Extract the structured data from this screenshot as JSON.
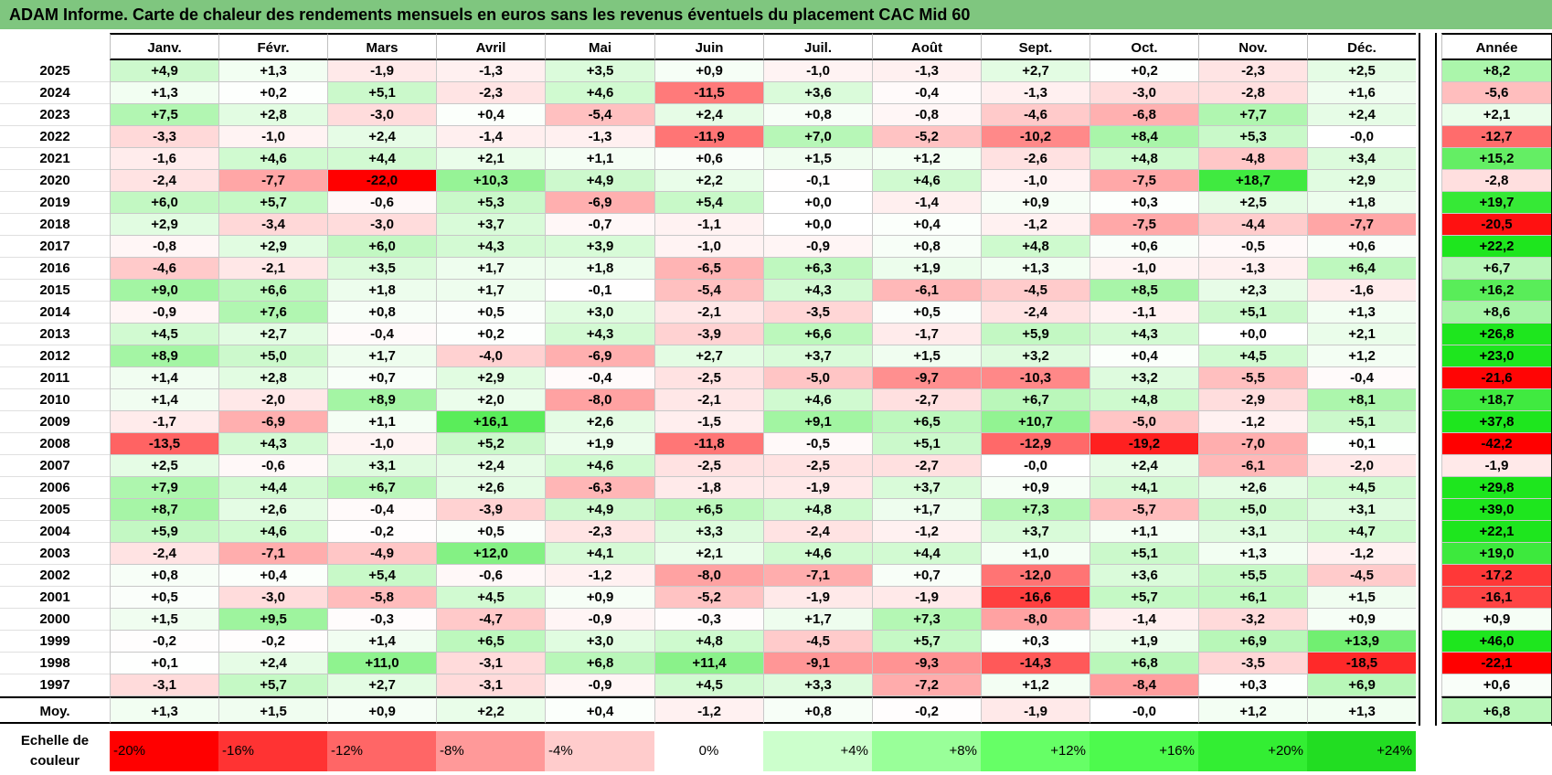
{
  "title": "ADAM Informe. Carte de chaleur des rendements mensuels en euros sans les revenus éventuels du placement CAC Mid 60",
  "chart_data": {
    "type": "heatmap",
    "title": "ADAM Informe. Carte de chaleur des rendements mensuels en euros sans les revenus éventuels du placement CAC Mid 60",
    "columns": [
      "Janv.",
      "Févr.",
      "Mars",
      "Avril",
      "Mai",
      "Juin",
      "Juil.",
      "Août",
      "Sept.",
      "Oct.",
      "Nov.",
      "Déc."
    ],
    "year_column": "Année",
    "rows": [
      {
        "year": "2025",
        "values": [
          "+4,9",
          "+1,3",
          "-1,9",
          "-1,3",
          "+3,5",
          "+0,9",
          "-1,0",
          "-1,3",
          "+2,7",
          "+0,2",
          "-2,3",
          "+2,5"
        ],
        "annual": "+8,2"
      },
      {
        "year": "2024",
        "values": [
          "+1,3",
          "+0,2",
          "+5,1",
          "-2,3",
          "+4,6",
          "-11,5",
          "+3,6",
          "-0,4",
          "-1,3",
          "-3,0",
          "-2,8",
          "+1,6"
        ],
        "annual": "-5,6"
      },
      {
        "year": "2023",
        "values": [
          "+7,5",
          "+2,8",
          "-3,0",
          "+0,4",
          "-5,4",
          "+2,4",
          "+0,8",
          "-0,8",
          "-4,6",
          "-6,8",
          "+7,7",
          "+2,4"
        ],
        "annual": "+2,1"
      },
      {
        "year": "2022",
        "values": [
          "-3,3",
          "-1,0",
          "+2,4",
          "-1,4",
          "-1,3",
          "-11,9",
          "+7,0",
          "-5,2",
          "-10,2",
          "+8,4",
          "+5,3",
          "-0,0"
        ],
        "annual": "-12,7"
      },
      {
        "year": "2021",
        "values": [
          "-1,6",
          "+4,6",
          "+4,4",
          "+2,1",
          "+1,1",
          "+0,6",
          "+1,5",
          "+1,2",
          "-2,6",
          "+4,8",
          "-4,8",
          "+3,4"
        ],
        "annual": "+15,2"
      },
      {
        "year": "2020",
        "values": [
          "-2,4",
          "-7,7",
          "-22,0",
          "+10,3",
          "+4,9",
          "+2,2",
          "-0,1",
          "+4,6",
          "-1,0",
          "-7,5",
          "+18,7",
          "+2,9"
        ],
        "annual": "-2,8"
      },
      {
        "year": "2019",
        "values": [
          "+6,0",
          "+5,7",
          "-0,6",
          "+5,3",
          "-6,9",
          "+5,4",
          "+0,0",
          "-1,4",
          "+0,9",
          "+0,3",
          "+2,5",
          "+1,8"
        ],
        "annual": "+19,7"
      },
      {
        "year": "2018",
        "values": [
          "+2,9",
          "-3,4",
          "-3,0",
          "+3,7",
          "-0,7",
          "-1,1",
          "+0,0",
          "+0,4",
          "-1,2",
          "-7,5",
          "-4,4",
          "-7,7"
        ],
        "annual": "-20,5"
      },
      {
        "year": "2017",
        "values": [
          "-0,8",
          "+2,9",
          "+6,0",
          "+4,3",
          "+3,9",
          "-1,0",
          "-0,9",
          "+0,8",
          "+4,8",
          "+0,6",
          "-0,5",
          "+0,6"
        ],
        "annual": "+22,2"
      },
      {
        "year": "2016",
        "values": [
          "-4,6",
          "-2,1",
          "+3,5",
          "+1,7",
          "+1,8",
          "-6,5",
          "+6,3",
          "+1,9",
          "+1,3",
          "-1,0",
          "-1,3",
          "+6,4"
        ],
        "annual": "+6,7"
      },
      {
        "year": "2015",
        "values": [
          "+9,0",
          "+6,6",
          "+1,8",
          "+1,7",
          "-0,1",
          "-5,4",
          "+4,3",
          "-6,1",
          "-4,5",
          "+8,5",
          "+2,3",
          "-1,6"
        ],
        "annual": "+16,2"
      },
      {
        "year": "2014",
        "values": [
          "-0,9",
          "+7,6",
          "+0,8",
          "+0,5",
          "+3,0",
          "-2,1",
          "-3,5",
          "+0,5",
          "-2,4",
          "-1,1",
          "+5,1",
          "+1,3"
        ],
        "annual": "+8,6"
      },
      {
        "year": "2013",
        "values": [
          "+4,5",
          "+2,7",
          "-0,4",
          "+0,2",
          "+4,3",
          "-3,9",
          "+6,6",
          "-1,7",
          "+5,9",
          "+4,3",
          "+0,0",
          "+2,1"
        ],
        "annual": "+26,8"
      },
      {
        "year": "2012",
        "values": [
          "+8,9",
          "+5,0",
          "+1,7",
          "-4,0",
          "-6,9",
          "+2,7",
          "+3,7",
          "+1,5",
          "+3,2",
          "+0,4",
          "+4,5",
          "+1,2"
        ],
        "annual": "+23,0"
      },
      {
        "year": "2011",
        "values": [
          "+1,4",
          "+2,8",
          "+0,7",
          "+2,9",
          "-0,4",
          "-2,5",
          "-5,0",
          "-9,7",
          "-10,3",
          "+3,2",
          "-5,5",
          "-0,4"
        ],
        "annual": "-21,6"
      },
      {
        "year": "2010",
        "values": [
          "+1,4",
          "-2,0",
          "+8,9",
          "+2,0",
          "-8,0",
          "-2,1",
          "+4,6",
          "-2,7",
          "+6,7",
          "+4,8",
          "-2,9",
          "+8,1"
        ],
        "annual": "+18,7"
      },
      {
        "year": "2009",
        "values": [
          "-1,7",
          "-6,9",
          "+1,1",
          "+16,1",
          "+2,6",
          "-1,5",
          "+9,1",
          "+6,5",
          "+10,7",
          "-5,0",
          "-1,2",
          "+5,1"
        ],
        "annual": "+37,8"
      },
      {
        "year": "2008",
        "values": [
          "-13,5",
          "+4,3",
          "-1,0",
          "+5,2",
          "+1,9",
          "-11,8",
          "-0,5",
          "+5,1",
          "-12,9",
          "-19,2",
          "-7,0",
          "+0,1"
        ],
        "annual": "-42,2"
      },
      {
        "year": "2007",
        "values": [
          "+2,5",
          "-0,6",
          "+3,1",
          "+2,4",
          "+4,6",
          "-2,5",
          "-2,5",
          "-2,7",
          "-0,0",
          "+2,4",
          "-6,1",
          "-2,0"
        ],
        "annual": "-1,9"
      },
      {
        "year": "2006",
        "values": [
          "+7,9",
          "+4,4",
          "+6,7",
          "+2,6",
          "-6,3",
          "-1,8",
          "-1,9",
          "+3,7",
          "+0,9",
          "+4,1",
          "+2,6",
          "+4,5"
        ],
        "annual": "+29,8"
      },
      {
        "year": "2005",
        "values": [
          "+8,7",
          "+2,6",
          "-0,4",
          "-3,9",
          "+4,9",
          "+6,5",
          "+4,8",
          "+1,7",
          "+7,3",
          "-5,7",
          "+5,0",
          "+3,1"
        ],
        "annual": "+39,0"
      },
      {
        "year": "2004",
        "values": [
          "+5,9",
          "+4,6",
          "-0,2",
          "+0,5",
          "-2,3",
          "+3,3",
          "-2,4",
          "-1,2",
          "+3,7",
          "+1,1",
          "+3,1",
          "+4,7"
        ],
        "annual": "+22,1"
      },
      {
        "year": "2003",
        "values": [
          "-2,4",
          "-7,1",
          "-4,9",
          "+12,0",
          "+4,1",
          "+2,1",
          "+4,6",
          "+4,4",
          "+1,0",
          "+5,1",
          "+1,3",
          "-1,2"
        ],
        "annual": "+19,0"
      },
      {
        "year": "2002",
        "values": [
          "+0,8",
          "+0,4",
          "+5,4",
          "-0,6",
          "-1,2",
          "-8,0",
          "-7,1",
          "+0,7",
          "-12,0",
          "+3,6",
          "+5,5",
          "-4,5"
        ],
        "annual": "-17,2"
      },
      {
        "year": "2001",
        "values": [
          "+0,5",
          "-3,0",
          "-5,8",
          "+4,5",
          "+0,9",
          "-5,2",
          "-1,9",
          "-1,9",
          "-16,6",
          "+5,7",
          "+6,1",
          "+1,5"
        ],
        "annual": "-16,1"
      },
      {
        "year": "2000",
        "values": [
          "+1,5",
          "+9,5",
          "-0,3",
          "-4,7",
          "-0,9",
          "-0,3",
          "+1,7",
          "+7,3",
          "-8,0",
          "-1,4",
          "-3,2",
          "+0,9"
        ],
        "annual": "+0,9"
      },
      {
        "year": "1999",
        "values": [
          "-0,2",
          "-0,2",
          "+1,4",
          "+6,5",
          "+3,0",
          "+4,8",
          "-4,5",
          "+5,7",
          "+0,3",
          "+1,9",
          "+6,9",
          "+13,9"
        ],
        "annual": "+46,0"
      },
      {
        "year": "1998",
        "values": [
          "+0,1",
          "+2,4",
          "+11,0",
          "-3,1",
          "+6,8",
          "+11,4",
          "-9,1",
          "-9,3",
          "-14,3",
          "+6,8",
          "-3,5",
          "-18,5"
        ],
        "annual": "-22,1"
      },
      {
        "year": "1997",
        "values": [
          "-3,1",
          "+5,7",
          "+2,7",
          "-3,1",
          "-0,9",
          "+4,5",
          "+3,3",
          "-7,2",
          "+1,2",
          "-8,4",
          "+0,3",
          "+6,9"
        ],
        "annual": "+0,6"
      }
    ],
    "average": {
      "label": "Moy.",
      "values": [
        "+1,3",
        "+1,5",
        "+0,9",
        "+2,2",
        "+0,4",
        "-1,2",
        "+0,8",
        "-0,2",
        "-1,9",
        "-0,0",
        "+1,2",
        "+1,3"
      ],
      "annual": "+6,8"
    },
    "scale": {
      "label": "Echelle de couleur",
      "stops": [
        {
          "label": "-20%",
          "color": "#ff0000"
        },
        {
          "label": "-16%",
          "color": "#ff3333"
        },
        {
          "label": "-12%",
          "color": "#ff6666"
        },
        {
          "label": "-8%",
          "color": "#ff9999"
        },
        {
          "label": "-4%",
          "color": "#ffcccc"
        },
        {
          "label": "0%",
          "color": "#ffffff"
        },
        {
          "label": "+4%",
          "color": "#ccffcc"
        },
        {
          "label": "+8%",
          "color": "#99ff99"
        },
        {
          "label": "+12%",
          "color": "#66ff66"
        },
        {
          "label": "+16%",
          "color": "#4dfa4d"
        },
        {
          "label": "+20%",
          "color": "#33ee33"
        },
        {
          "label": "+24%",
          "color": "#22dd22"
        }
      ]
    }
  }
}
